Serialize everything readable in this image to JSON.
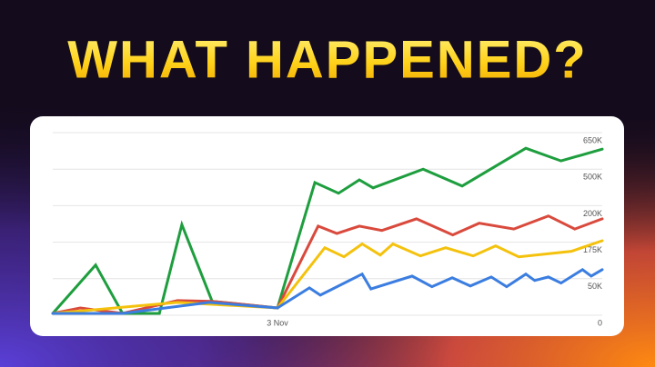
{
  "chart_data": {
    "type": "line",
    "title": "WHAT HAPPENED?",
    "xlim": [
      0,
      100
    ],
    "xticks": [
      {
        "value": 40.9,
        "label": "3 Nov"
      }
    ],
    "ylim": [
      0,
      650000
    ],
    "yticks": [
      0,
      {
        "value": 50000,
        "label": "50K"
      },
      {
        "value": 175000,
        "label": "175K"
      },
      {
        "value": 200000,
        "label": "200K"
      },
      {
        "value": 500000,
        "label": "500K"
      },
      {
        "value": 650000,
        "label": "650K"
      }
    ],
    "grid": true,
    "series": [
      {
        "color": "#1e9e3e",
        "x": [
          0,
          7.8,
          12.7,
          19.4,
          23.5,
          29,
          40.9,
          47.7,
          52,
          55.8,
          58.3,
          67.4,
          74.5,
          86.1,
          92.5,
          100
        ],
        "values": [
          2500,
          97000,
          2500,
          2500,
          187000,
          19000,
          10000,
          390000,
          302000,
          412000,
          346000,
          500000,
          361000,
          586000,
          534000,
          582000
        ]
      },
      {
        "color": "#d94a3d",
        "x": [
          0,
          5,
          12.7,
          22.7,
          29,
          40.9,
          48.3,
          51.7,
          55.8,
          59.9,
          66.2,
          72.8,
          77.6,
          83.9,
          90.2,
          95,
          100
        ],
        "values": [
          2500,
          10000,
          2500,
          20000,
          19000,
          10000,
          186000,
          181000,
          186000,
          183000,
          191000,
          180000,
          188000,
          184000,
          193000,
          184000,
          191000
        ]
      },
      {
        "color": "#f4c20d",
        "x": [
          0,
          22.7,
          40.9,
          49.5,
          53,
          56.3,
          59.6,
          61.9,
          66.9,
          71.5,
          76.5,
          80.6,
          84.8,
          94.4,
          100
        ],
        "values": [
          2500,
          17500,
          10000,
          156000,
          125000,
          169000,
          131000,
          169000,
          128000,
          156000,
          128000,
          162500,
          125000,
          144000,
          176000
        ]
      },
      {
        "color": "#3b7de0",
        "x": [
          0,
          12.7,
          28.5,
          40.9,
          46.7,
          48.7,
          56.3,
          57.9,
          65.4,
          69,
          72.7,
          76,
          79.8,
          82.6,
          86.1,
          87.7,
          90.2,
          92.5,
          96.4,
          98,
          100
        ],
        "values": [
          2500,
          2500,
          17500,
          10000,
          37500,
          27500,
          66000,
          36000,
          59000,
          39000,
          53000,
          40000,
          56000,
          39000,
          66000,
          47500,
          56000,
          44000,
          81000,
          59000,
          81000
        ]
      }
    ]
  }
}
